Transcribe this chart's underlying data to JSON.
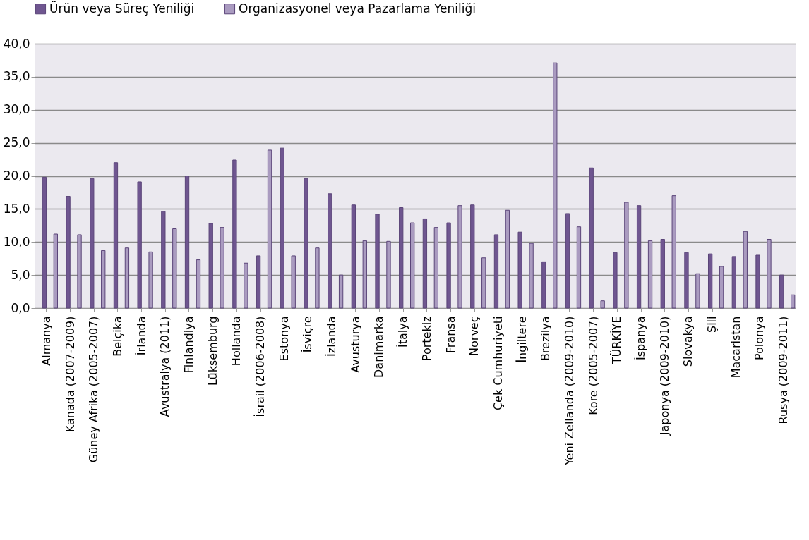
{
  "chart_data": {
    "type": "bar",
    "categories": [
      "Almanya",
      "Kanada (2007-2009)",
      "Güney Afrika (2005-2007)",
      "Belçika",
      "İrlanda",
      "Avustralya (2011)",
      "Finlandiya",
      "Lüksemburg",
      "Hollanda",
      "İsrail (2006-2008)",
      "Estonya",
      "İsviçre",
      "İzlanda",
      "Avusturya",
      "Danimarka",
      "İtalya",
      "Portekiz",
      "Fransa",
      "Norveç",
      "Çek Cumhuriyeti",
      "İngiltere",
      "Brezilya",
      "Yeni Zellanda (2009-2010)",
      "Kore (2005-2007)",
      "TÜRKİYE",
      "İspanya",
      "Japonya (2009-2010)",
      "Slovakya",
      "Şili",
      "Macaristan",
      "Polonya",
      "Rusya (2009-2011)"
    ],
    "series": [
      {
        "name": "Ürün veya Süreç Yeniliği",
        "color": "#6f5690",
        "values": [
          19.8,
          16.9,
          19.6,
          22.0,
          19.1,
          14.6,
          20.0,
          12.8,
          22.4,
          7.9,
          24.2,
          19.6,
          17.3,
          15.6,
          14.2,
          15.2,
          13.5,
          12.9,
          15.6,
          11.1,
          11.5,
          7.0,
          14.3,
          21.2,
          8.4,
          15.5,
          10.4,
          8.4,
          8.2,
          7.8,
          8.0,
          5.0
        ]
      },
      {
        "name": "Organizasyonel veya Pazarlama Yeniliği",
        "color": "#aa9bc0",
        "values": [
          11.2,
          11.1,
          8.7,
          9.1,
          8.5,
          12.0,
          7.3,
          12.2,
          6.8,
          23.9,
          7.9,
          9.1,
          5.0,
          10.2,
          10.1,
          12.9,
          12.2,
          15.5,
          7.6,
          14.8,
          9.8,
          37.1,
          12.3,
          1.1,
          16.0,
          10.2,
          17.0,
          5.2,
          6.3,
          11.6,
          10.4,
          2.0
        ]
      }
    ],
    "ylim": [
      0,
      40
    ],
    "yticks": [
      {
        "value": 0,
        "label": "0,0"
      },
      {
        "value": 5,
        "label": "5,0"
      },
      {
        "value": 10,
        "label": "10,0"
      },
      {
        "value": 15,
        "label": "15,0"
      },
      {
        "value": 20,
        "label": "20,0"
      },
      {
        "value": 25,
        "label": "25,0"
      },
      {
        "value": 30,
        "label": "30,0"
      },
      {
        "value": 35,
        "label": "35,0"
      },
      {
        "value": 40,
        "label": "40,0"
      }
    ],
    "grid": "y",
    "legend": "top"
  }
}
